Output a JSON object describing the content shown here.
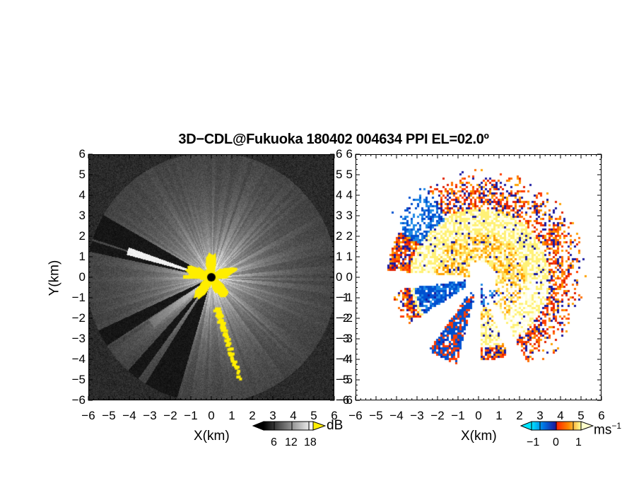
{
  "figure": {
    "title": "3D−CDL@Fukuoka 180402 004634 PPI EL=02.0º"
  },
  "chart_data": [
    {
      "type": "heatmap",
      "name": "reflectivity-ppi",
      "xlabel": "X(km)",
      "ylabel": "Y(km)",
      "xlim": [
        -6,
        6
      ],
      "ylim": [
        -6,
        6
      ],
      "x_ticks": [
        "−6",
        "−5",
        "−4",
        "−3",
        "−2",
        "−1",
        "0",
        "1",
        "2",
        "3",
        "4",
        "5",
        "6"
      ],
      "y_ticks": [
        "6",
        "5",
        "4",
        "3",
        "2",
        "1",
        "0",
        "−1",
        "−2",
        "−3",
        "−4",
        "−5",
        "−6"
      ],
      "colorbar": {
        "unit": "dB",
        "ticks": [
          "6",
          "12",
          "18"
        ],
        "range": [
          0,
          21
        ],
        "colors": [
          "#000000",
          "#ffffff"
        ],
        "overflow_color": "#ffee00"
      },
      "clutter_color": "#ffee00",
      "radar_site": {
        "x": 0,
        "y": 0
      }
    },
    {
      "type": "heatmap",
      "name": "doppler-velocity-ppi",
      "xlabel": "X(km)",
      "xlim": [
        -6,
        6
      ],
      "ylim": [
        -6,
        6
      ],
      "x_ticks": [
        "−6",
        "−5",
        "−4",
        "−3",
        "−2",
        "−1",
        "0",
        "1",
        "2",
        "3",
        "4",
        "5",
        "6"
      ],
      "y_ticks": [
        "6",
        "5",
        "4",
        "3",
        "2",
        "1",
        "0",
        "−1",
        "−2",
        "−3",
        "−4",
        "−5",
        "−6"
      ],
      "colorbar": {
        "unit": "ms",
        "unit_exponent": "−1",
        "ticks": [
          "−1",
          "0",
          "1"
        ],
        "range": [
          -1.5,
          1.5
        ],
        "colors": [
          "#00e5ff",
          "#0070e0",
          "#1a1aa0",
          "#ff2a00",
          "#ff8a00",
          "#ffff99"
        ]
      }
    }
  ]
}
